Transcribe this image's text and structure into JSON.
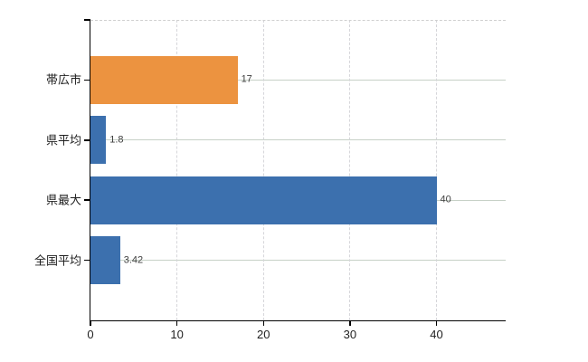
{
  "chart_data": {
    "type": "bar",
    "orientation": "horizontal",
    "title": "",
    "categories": [
      "帯広市",
      "県平均",
      "県最大",
      "全国平均"
    ],
    "values": [
      17,
      1.8,
      40,
      3.42
    ],
    "value_labels": [
      "17",
      "1.8",
      "40",
      "3.42"
    ],
    "series_colors": [
      "#EC9340",
      "#3C70AE",
      "#3C70AE",
      "#3C70AE"
    ],
    "x_tick_labels": [
      "0",
      "10",
      "20",
      "30",
      "40"
    ],
    "x_tick_values": [
      0,
      10,
      20,
      30,
      40
    ],
    "xlim": [
      0,
      48
    ],
    "grid": "on",
    "legend": "none",
    "colors": {
      "bar_orange": "#EC9340",
      "bar_blue": "#3C70AE",
      "grid_horizontal": "#c7d1c7",
      "grid_vertical": "#d6d6da",
      "plot_top_border": "#cfcfcf",
      "axis": "#000000",
      "value_text": "#3f3f3f",
      "tick_text": "#1f1f1f",
      "background": "#ffffff"
    }
  }
}
